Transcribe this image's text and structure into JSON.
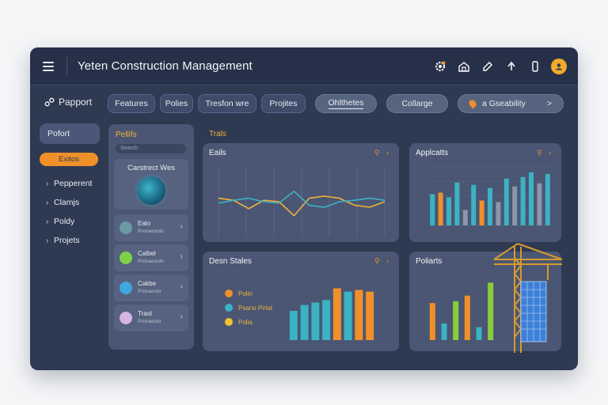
{
  "app": {
    "title": "Yeten Construction Management"
  },
  "toolbar": {
    "brand": "Papport",
    "pills": [
      "Features",
      "Polies",
      "Tresfon wre",
      "Projites",
      "Ohlthetes",
      "Collarge"
    ],
    "search": "a Gseability",
    "search_arrow": ">"
  },
  "leftnav": {
    "top": "Pofort",
    "active": "Exitos",
    "items": [
      "Pepperent",
      "Clamjs",
      "Poldy",
      "Projets"
    ]
  },
  "listpanel": {
    "title": "Pellifs",
    "search_placeholder": "Search",
    "card_caption": "Carstrect Wes",
    "rows": [
      {
        "name": "Ealo",
        "sub": "Pronacoolo",
        "avatar": "#6a9aa5"
      },
      {
        "name": "Calbel",
        "sub": "Pronacoolo",
        "avatar": "#7fd14a"
      },
      {
        "name": "Cakbe",
        "sub": "Pronacolo",
        "avatar": "#3ea9e0"
      },
      {
        "name": "Traol",
        "sub": "Pronacolo",
        "avatar": "#d6b3e4"
      }
    ]
  },
  "main": {
    "section_title": "Trals"
  },
  "colors": {
    "accent": "#f0902a",
    "teal": "#3bb3c3",
    "green": "#8ccc3a",
    "gray": "#8a96aa"
  },
  "cards": {
    "line": {
      "title": "Eails"
    },
    "applicants": {
      "title": "Applcatts"
    },
    "data": {
      "title": "Desn Stales"
    },
    "projects": {
      "title": "Poliarts"
    }
  },
  "chart_data": [
    {
      "type": "line",
      "title": "Eails",
      "series": [
        {
          "values": [
            55,
            52,
            40,
            52,
            50,
            30,
            55,
            58,
            55,
            45,
            42,
            50
          ]
        },
        {
          "values": [
            48,
            52,
            55,
            50,
            48,
            65,
            45,
            42,
            50,
            52,
            55,
            52
          ]
        }
      ]
    },
    {
      "type": "bar",
      "title": "Applcatts",
      "y_tick_labels": [
        "",
        "",
        "",
        "",
        ""
      ],
      "values": [
        40,
        42,
        36,
        55,
        20,
        52,
        32,
        48,
        30,
        60,
        50,
        62,
        68,
        54,
        66
      ],
      "colors": [
        "#3bb3c3",
        "#f0902a",
        "#3bb3c3",
        "#3bb3c3",
        "#8a96aa",
        "#3bb3c3",
        "#f0902a",
        "#3bb3c3",
        "#8a96aa",
        "#3bb3c3",
        "#8a96aa",
        "#3bb3c3",
        "#3bb3c3",
        "#8a96aa",
        "#3bb3c3"
      ]
    },
    {
      "type": "bar",
      "title": "Desn Stales",
      "legend": [
        "Poliri",
        "Psano Pirlat",
        "Polia"
      ],
      "legend_colors": [
        "#f0902a",
        "#3bb3c3",
        "#f2c230"
      ],
      "values": [
        35,
        42,
        45,
        48,
        62,
        58,
        60,
        58
      ],
      "colors": [
        "#3bb3c3",
        "#3bb3c3",
        "#3bb3c3",
        "#3bb3c3",
        "#f0902a",
        "#3bb3c3",
        "#f0902a",
        "#f0902a"
      ]
    },
    {
      "type": "bar",
      "title": "Poliarts",
      "values": [
        40,
        18,
        42,
        48,
        14,
        62
      ],
      "colors": [
        "#f0902a",
        "#3bb3c3",
        "#8ccc3a",
        "#f0902a",
        "#3bb3c3",
        "#8ccc3a"
      ]
    }
  ]
}
